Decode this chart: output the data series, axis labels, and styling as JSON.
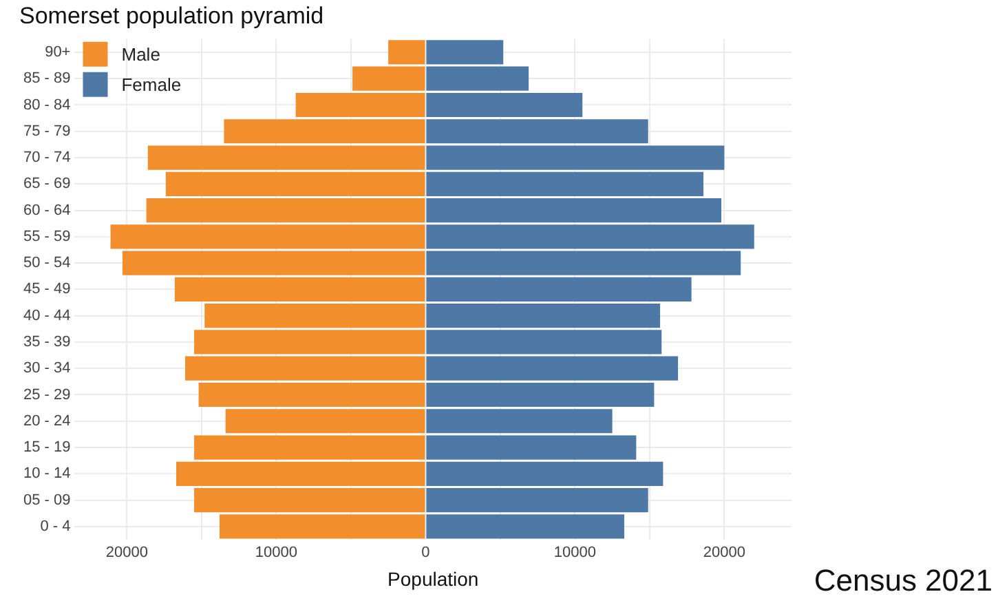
{
  "chart_data": {
    "type": "bar",
    "orientation": "horizontal",
    "stacked": true,
    "title": "Somerset population pyramid",
    "xlabel": "Population",
    "categories": [
      "90+",
      "85 - 89",
      "80 - 84",
      "75 - 79",
      "70 - 74",
      "65 - 69",
      "60 - 64",
      "55 - 59",
      "50 - 54",
      "45 - 49",
      "40 - 44",
      "35 - 39",
      "30 - 34",
      "25 - 29",
      "20 - 24",
      "15 - 19",
      "10 - 14",
      "05 - 09",
      "0 - 4"
    ],
    "series": [
      {
        "name": "Male",
        "color": "#f28e2b",
        "values": [
          -2500,
          -4900,
          -8700,
          -13500,
          -18600,
          -17400,
          -18700,
          -21100,
          -20300,
          -16800,
          -14800,
          -15500,
          -16100,
          -15200,
          -13400,
          -15500,
          -16700,
          -15500,
          -13800
        ]
      },
      {
        "name": "Female",
        "color": "#4e79a7",
        "values": [
          5200,
          6900,
          10500,
          14900,
          20000,
          18600,
          19800,
          22000,
          21100,
          17800,
          15700,
          15800,
          16900,
          15300,
          12500,
          14100,
          15900,
          14900,
          13300
        ]
      }
    ],
    "xlim": [
      -23500,
      24500
    ],
    "xticks": [
      {
        "value": -20000,
        "label": "20000"
      },
      {
        "value": -15000,
        "label": null
      },
      {
        "value": -10000,
        "label": "10000"
      },
      {
        "value": -5000,
        "label": null
      },
      0,
      {
        "value": 5000,
        "label": null
      },
      10000,
      {
        "value": 15000,
        "label": null
      },
      20000
    ],
    "grid": true,
    "legend": "top left",
    "annotations": [
      "Census 2021"
    ]
  }
}
